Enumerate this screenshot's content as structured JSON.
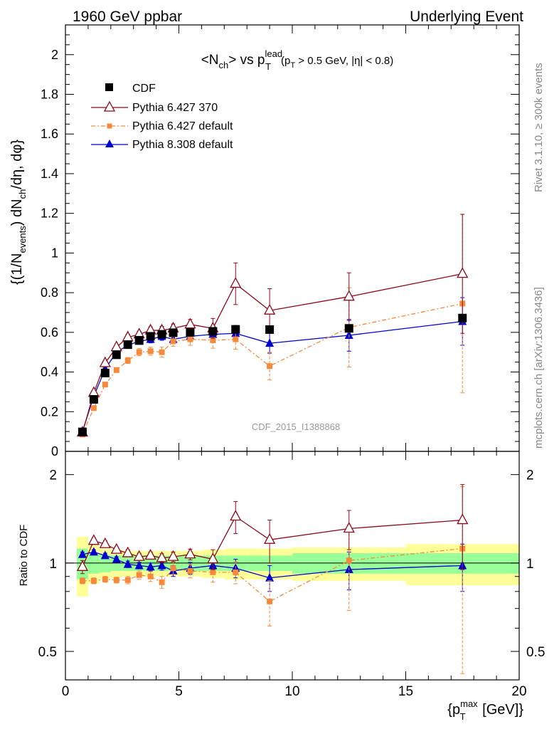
{
  "header": {
    "left": "1960 GeV ppbar",
    "right": "Underlying Event"
  },
  "side": {
    "rivet": "Rivet 3.1.10, ≥ 300k events",
    "mcplots": "mcplots.cern.ch [arXiv:1306.3436]"
  },
  "watermark": "CDF_2015_I1388868",
  "chart_data": {
    "type": "line",
    "title": "<N_ch> vs p_T^lead (p_T > 0.5 GeV, |η| < 0.8)",
    "xlabel": "{p_T^max [GeV]}",
    "ylabel": "{(1/N_events) dN_ch/dη, dφ}",
    "ratio_ylabel": "Ratio to CDF",
    "xlim": [
      0,
      20
    ],
    "ylim": [
      0,
      2.15
    ],
    "ratio_ylim": [
      0.4,
      2.4
    ],
    "ratio_log_scale": true,
    "x_ticks": [
      0,
      5,
      10,
      15,
      20
    ],
    "y_ticks": [
      0,
      0.2,
      0.4,
      0.6,
      0.8,
      1,
      1.2,
      1.4,
      1.6,
      1.8,
      2
    ],
    "ratio_ticks": [
      0.5,
      1,
      2
    ],
    "legend": "top-left",
    "x": [
      0.75,
      1.25,
      1.75,
      2.25,
      2.75,
      3.25,
      3.75,
      4.25,
      4.75,
      5.5,
      6.5,
      7.5,
      9.0,
      12.5,
      17.5
    ],
    "x_bins": [
      [
        0.5,
        1.0
      ],
      [
        1.0,
        1.5
      ],
      [
        1.5,
        2.0
      ],
      [
        2.0,
        2.5
      ],
      [
        2.5,
        3.0
      ],
      [
        3.0,
        3.5
      ],
      [
        3.5,
        4.0
      ],
      [
        4.0,
        4.5
      ],
      [
        4.5,
        5.0
      ],
      [
        5.0,
        6.0
      ],
      [
        6.0,
        7.0
      ],
      [
        7.0,
        8.0
      ],
      [
        8.0,
        10.0
      ],
      [
        10.0,
        15.0
      ],
      [
        15.0,
        20.0
      ]
    ],
    "series": [
      {
        "name": "CDF",
        "color": "#000000",
        "marker": "square",
        "values": [
          0.098,
          0.262,
          0.395,
          0.487,
          0.538,
          0.56,
          0.58,
          0.59,
          0.598,
          0.6,
          0.605,
          0.615,
          0.614,
          0.62,
          0.672
        ],
        "band_inner": [
          0.12,
          0.08,
          0.07,
          0.06,
          0.06,
          0.06,
          0.06,
          0.06,
          0.06,
          0.06,
          0.06,
          0.06,
          0.06,
          0.08,
          0.08
        ],
        "band_outer": [
          0.23,
          0.15,
          0.12,
          0.11,
          0.1,
          0.1,
          0.1,
          0.1,
          0.1,
          0.1,
          0.11,
          0.12,
          0.12,
          0.13,
          0.16
        ]
      },
      {
        "name": "Pythia 6.427 370",
        "color": "#8b0a1a",
        "marker": "triangle-open",
        "dash": "",
        "values": [
          0.095,
          0.295,
          0.445,
          0.525,
          0.575,
          0.59,
          0.61,
          0.61,
          0.62,
          0.64,
          0.62,
          0.845,
          0.71,
          0.78,
          0.895
        ],
        "errors": [
          0.006,
          0.012,
          0.012,
          0.012,
          0.015,
          0.015,
          0.018,
          0.02,
          0.022,
          0.025,
          0.05,
          0.105,
          0.11,
          0.12,
          0.3
        ],
        "ratio": [
          0.97,
          1.19,
          1.16,
          1.11,
          1.08,
          1.05,
          1.06,
          1.04,
          1.05,
          1.07,
          1.03,
          1.44,
          1.2,
          1.31,
          1.4
        ],
        "ratio_errors": [
          0.05,
          0.03,
          0.03,
          0.025,
          0.03,
          0.03,
          0.03,
          0.035,
          0.04,
          0.045,
          0.08,
          0.18,
          0.2,
          0.2,
          0.45
        ]
      },
      {
        "name": "Pythia 6.427 default",
        "color": "#f58a3c",
        "marker": "square-small",
        "dash": "6 3 2 3",
        "values": [
          0.085,
          0.218,
          0.337,
          0.41,
          0.458,
          0.5,
          0.505,
          0.5,
          0.555,
          0.565,
          0.56,
          0.565,
          0.43,
          0.625,
          0.745
        ],
        "errors": [
          0.005,
          0.01,
          0.01,
          0.012,
          0.015,
          0.018,
          0.02,
          0.025,
          0.025,
          0.03,
          0.04,
          0.05,
          0.07,
          0.2,
          0.45
        ],
        "ratio": [
          0.87,
          0.87,
          0.88,
          0.875,
          0.875,
          0.91,
          0.9,
          0.86,
          0.96,
          0.94,
          0.93,
          0.93,
          0.74,
          1.02,
          1.12
        ],
        "ratio_errors": [
          0.02,
          0.02,
          0.02,
          0.02,
          0.025,
          0.03,
          0.035,
          0.04,
          0.045,
          0.05,
          0.07,
          0.08,
          0.13,
          0.33,
          0.7
        ]
      },
      {
        "name": "Pythia 8.308 default",
        "color": "#0000cc",
        "marker": "triangle-filled",
        "dash": "",
        "values": [
          0.1,
          0.278,
          0.415,
          0.5,
          0.535,
          0.555,
          0.565,
          0.58,
          0.565,
          0.58,
          0.59,
          0.595,
          0.545,
          0.585,
          0.655
        ],
        "errors": [
          0.005,
          0.01,
          0.01,
          0.012,
          0.015,
          0.015,
          0.018,
          0.02,
          0.022,
          0.025,
          0.035,
          0.04,
          0.05,
          0.08,
          0.12
        ],
        "ratio": [
          1.07,
          1.09,
          1.06,
          1.03,
          0.99,
          0.98,
          0.97,
          0.98,
          0.94,
          0.96,
          0.98,
          0.96,
          0.89,
          0.95,
          0.98
        ],
        "ratio_errors": [
          0.02,
          0.02,
          0.02,
          0.02,
          0.025,
          0.025,
          0.03,
          0.035,
          0.04,
          0.045,
          0.06,
          0.07,
          0.09,
          0.14,
          0.18
        ]
      }
    ]
  }
}
